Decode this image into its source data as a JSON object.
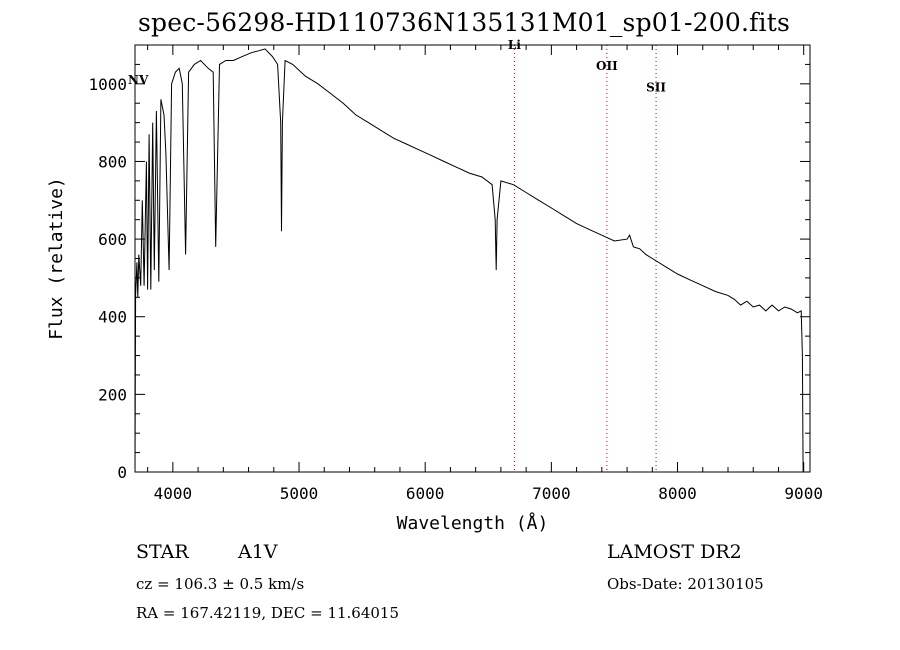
{
  "title": "spec-56298-HD110736N135131M01_sp01-200.fits",
  "info": {
    "object": "STAR",
    "subclass": "A1V",
    "redshift": "cz = 106.3 ± 0.5 km/s",
    "coords": "RA = 167.42119, DEC =  11.64015",
    "survey": "LAMOST DR2",
    "obs_date": "Obs-Date: 20130105"
  },
  "chart_data": {
    "type": "line",
    "title": "spec-56298-HD110736N135131M01_sp01-200.fits",
    "xlabel": "Wavelength (Å)",
    "ylabel": "Flux (relative)",
    "xlim": [
      3700,
      9050
    ],
    "ylim": [
      0,
      1100
    ],
    "xticks": [
      4000,
      5000,
      6000,
      7000,
      8000,
      9000
    ],
    "yticks": [
      0,
      200,
      400,
      600,
      800,
      1000
    ],
    "grid": false,
    "series": [
      {
        "points": [
          [
            3700,
            0
          ],
          [
            3705,
            455
          ],
          [
            3715,
            540
          ],
          [
            3722,
            450
          ],
          [
            3730,
            560
          ],
          [
            3745,
            480
          ],
          [
            3758,
            700
          ],
          [
            3772,
            480
          ],
          [
            3790,
            800
          ],
          [
            3800,
            470
          ],
          [
            3812,
            870
          ],
          [
            3825,
            470
          ],
          [
            3840,
            900
          ],
          [
            3853,
            520
          ],
          [
            3870,
            930
          ],
          [
            3889,
            490
          ],
          [
            3905,
            960
          ],
          [
            3930,
            920
          ],
          [
            3945,
            820
          ],
          [
            3970,
            520
          ],
          [
            3990,
            1000
          ],
          [
            4020,
            1030
          ],
          [
            4050,
            1040
          ],
          [
            4075,
            1000
          ],
          [
            4101,
            560
          ],
          [
            4125,
            1030
          ],
          [
            4170,
            1050
          ],
          [
            4220,
            1060
          ],
          [
            4280,
            1040
          ],
          [
            4320,
            1030
          ],
          [
            4340,
            580
          ],
          [
            4370,
            1050
          ],
          [
            4420,
            1060
          ],
          [
            4480,
            1060
          ],
          [
            4550,
            1070
          ],
          [
            4620,
            1080
          ],
          [
            4680,
            1085
          ],
          [
            4730,
            1090
          ],
          [
            4790,
            1070
          ],
          [
            4830,
            1050
          ],
          [
            4855,
            900
          ],
          [
            4861,
            620
          ],
          [
            4868,
            900
          ],
          [
            4890,
            1060
          ],
          [
            4950,
            1050
          ],
          [
            5050,
            1020
          ],
          [
            5150,
            1000
          ],
          [
            5250,
            975
          ],
          [
            5350,
            950
          ],
          [
            5450,
            920
          ],
          [
            5550,
            900
          ],
          [
            5650,
            880
          ],
          [
            5750,
            860
          ],
          [
            5850,
            845
          ],
          [
            5950,
            830
          ],
          [
            6050,
            815
          ],
          [
            6150,
            800
          ],
          [
            6250,
            785
          ],
          [
            6350,
            770
          ],
          [
            6450,
            760
          ],
          [
            6530,
            740
          ],
          [
            6555,
            650
          ],
          [
            6563,
            520
          ],
          [
            6570,
            650
          ],
          [
            6600,
            750
          ],
          [
            6700,
            740
          ],
          [
            6800,
            720
          ],
          [
            6900,
            700
          ],
          [
            7000,
            680
          ],
          [
            7100,
            660
          ],
          [
            7200,
            640
          ],
          [
            7300,
            625
          ],
          [
            7400,
            610
          ],
          [
            7500,
            595
          ],
          [
            7600,
            600
          ],
          [
            7620,
            610
          ],
          [
            7650,
            580
          ],
          [
            7700,
            575
          ],
          [
            7750,
            560
          ],
          [
            7800,
            550
          ],
          [
            7900,
            530
          ],
          [
            8000,
            510
          ],
          [
            8100,
            495
          ],
          [
            8200,
            480
          ],
          [
            8300,
            465
          ],
          [
            8400,
            455
          ],
          [
            8450,
            445
          ],
          [
            8500,
            430
          ],
          [
            8550,
            440
          ],
          [
            8600,
            425
          ],
          [
            8650,
            430
          ],
          [
            8700,
            415
          ],
          [
            8750,
            430
          ],
          [
            8800,
            415
          ],
          [
            8850,
            425
          ],
          [
            8900,
            420
          ],
          [
            8950,
            410
          ],
          [
            8980,
            415
          ],
          [
            8990,
            300
          ],
          [
            8995,
            0
          ]
        ]
      }
    ],
    "lines": [
      {
        "label": "NV",
        "x": 3725,
        "style": "label-only"
      },
      {
        "label": "Li",
        "x": 6707
      },
      {
        "label": "OII",
        "x": 7440
      },
      {
        "label": "SII",
        "x": 7830
      }
    ],
    "line_color": "#e00000"
  }
}
